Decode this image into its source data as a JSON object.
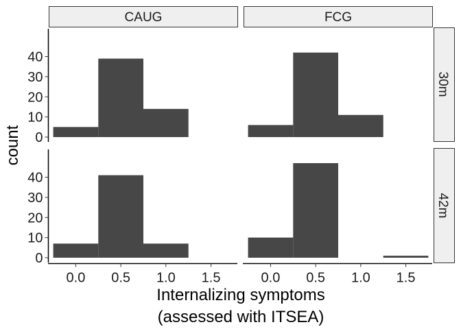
{
  "chart_data": {
    "type": "histogram",
    "title": "",
    "xlabel": "Internalizing symptoms",
    "xlabel_line2": "(assessed with ITSEA)",
    "ylabel": "count",
    "facet_columns": [
      "CAUG",
      "FCG"
    ],
    "facet_rows": [
      "30m",
      "42m"
    ],
    "x_ticks": [
      "0.0",
      "0.5",
      "1.0",
      "1.5"
    ],
    "y_ticks": [
      "0",
      "10",
      "20",
      "30",
      "40"
    ],
    "xlim": [
      -0.3,
      1.8
    ],
    "ylim": [
      0,
      47
    ],
    "bin_width": 0.5,
    "grid": false,
    "bar_color": "#474747",
    "strip_fill": "#efefef",
    "panels": [
      {
        "column": "CAUG",
        "row": "30m",
        "bins": [
          {
            "x": 0.0,
            "count": 5
          },
          {
            "x": 0.5,
            "count": 39
          },
          {
            "x": 1.0,
            "count": 14
          }
        ]
      },
      {
        "column": "FCG",
        "row": "30m",
        "bins": [
          {
            "x": 0.0,
            "count": 6
          },
          {
            "x": 0.5,
            "count": 42
          },
          {
            "x": 1.0,
            "count": 11
          }
        ]
      },
      {
        "column": "CAUG",
        "row": "42m",
        "bins": [
          {
            "x": 0.0,
            "count": 7
          },
          {
            "x": 0.5,
            "count": 41
          },
          {
            "x": 1.0,
            "count": 7
          }
        ]
      },
      {
        "column": "FCG",
        "row": "42m",
        "bins": [
          {
            "x": 0.0,
            "count": 10
          },
          {
            "x": 0.5,
            "count": 47
          },
          {
            "x": 1.5,
            "count": 1
          }
        ]
      }
    ]
  }
}
